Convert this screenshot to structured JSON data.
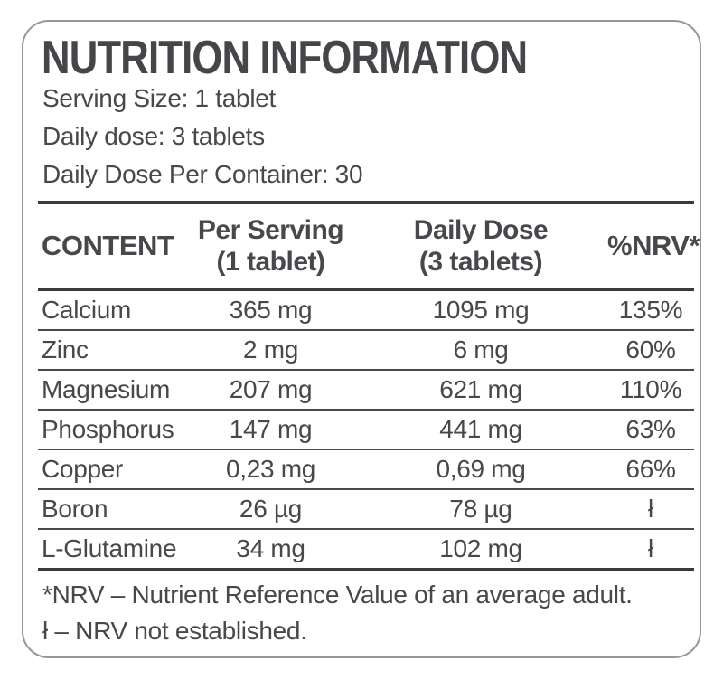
{
  "colors": {
    "text": "#48484c",
    "rule_thick": "#3a3a3e",
    "rule_thin": "#4a4a4e",
    "border": "#97979b",
    "background": "#ffffff"
  },
  "label": {
    "title": "NUTRITION INFORMATION",
    "meta": {
      "serving_size": "Serving Size: 1 tablet",
      "daily_dose": "Daily dose: 3 tablets",
      "daily_dose_per_container": "Daily Dose Per Container: 30"
    },
    "table": {
      "col_content": "CONTENT",
      "col_per_serving_line1": "Per Serving",
      "col_per_serving_line2": "(1 tablet)",
      "col_daily_dose_line1": "Daily Dose",
      "col_daily_dose_line2": "(3 tablets)",
      "col_nrv": "%NRV*",
      "rows": [
        {
          "name": "Calcium",
          "per_serving": "365 mg",
          "daily_dose": "1095 mg",
          "nrv": "135%"
        },
        {
          "name": "Zinc",
          "per_serving": "2 mg",
          "daily_dose": "6 mg",
          "nrv": "60%"
        },
        {
          "name": "Magnesium",
          "per_serving": "207 mg",
          "daily_dose": "621 mg",
          "nrv": "110%"
        },
        {
          "name": "Phosphorus",
          "per_serving": "147 mg",
          "daily_dose": "441 mg",
          "nrv": "63%"
        },
        {
          "name": "Copper",
          "per_serving": "0,23 mg",
          "daily_dose": "0,69 mg",
          "nrv": "66%"
        },
        {
          "name": "Boron",
          "per_serving": "26 µg",
          "daily_dose": "78 µg",
          "nrv": "ł"
        },
        {
          "name": "L-Glutamine",
          "per_serving": "34 mg",
          "daily_dose": "102 mg",
          "nrv": "ł"
        }
      ]
    },
    "footnotes": {
      "nrv_definition": "*NRV – Nutrient Reference Value of an average adult.",
      "not_established": "ł – NRV not established."
    }
  }
}
